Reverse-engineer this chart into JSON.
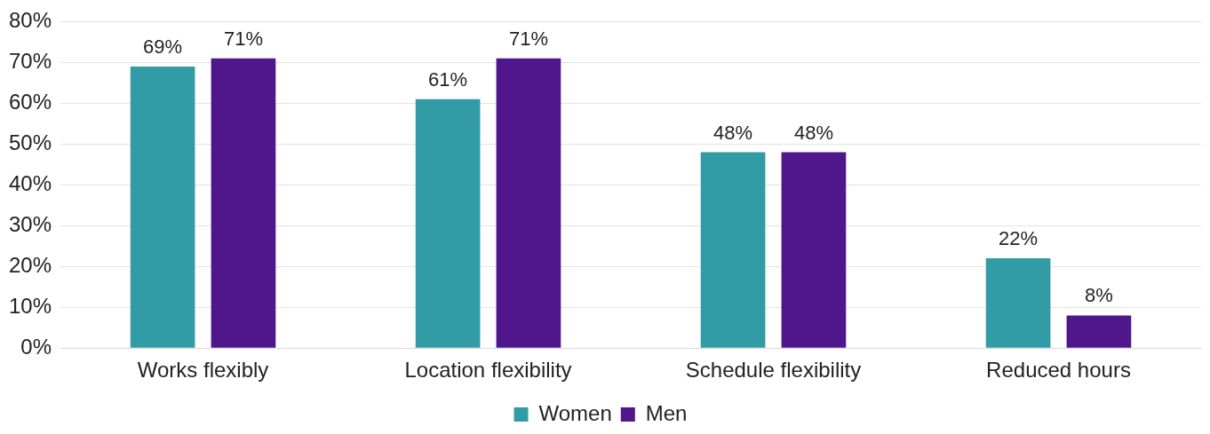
{
  "chart_data": {
    "type": "bar",
    "categories": [
      "Works flexibly",
      "Location flexibility",
      "Schedule flexibility",
      "Reduced hours"
    ],
    "series": [
      {
        "name": "Women",
        "color": "#319ba6",
        "values": [
          69,
          61,
          48,
          22
        ],
        "value_labels": [
          "69%",
          "61%",
          "48%",
          "22%"
        ]
      },
      {
        "name": "Men",
        "color": "#50168c",
        "values": [
          71,
          71,
          48,
          8
        ],
        "value_labels": [
          "71%",
          "71%",
          "48%",
          "8%"
        ]
      }
    ],
    "ylim": [
      0,
      80
    ],
    "yticks": [
      {
        "value": 0,
        "label": "0%"
      },
      {
        "value": 10,
        "label": "10%"
      },
      {
        "value": 20,
        "label": "20%"
      },
      {
        "value": 30,
        "label": "30%"
      },
      {
        "value": 40,
        "label": "40%"
      },
      {
        "value": 50,
        "label": "50%"
      },
      {
        "value": 60,
        "label": "60%"
      },
      {
        "value": 70,
        "label": "70%"
      },
      {
        "value": 80,
        "label": "80%"
      }
    ],
    "grid": "y",
    "legend": "bottom"
  }
}
